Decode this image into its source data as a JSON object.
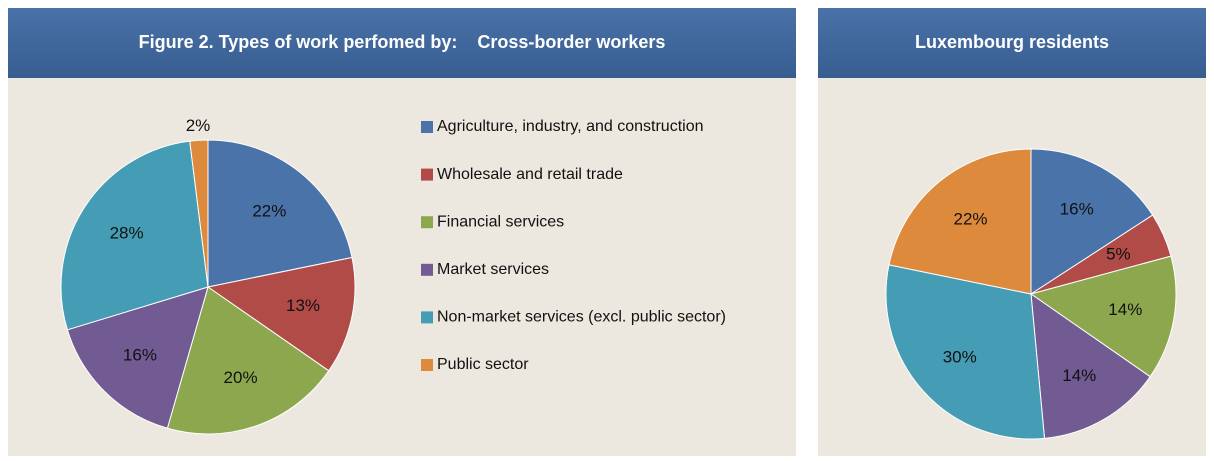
{
  "chart_data": [
    {
      "type": "pie",
      "title": "Figure 2. Types of work perfomed by:    Cross-border workers",
      "categories": [
        "Agriculture, industry, and construction",
        "Wholesale and retail trade",
        "Financial services",
        "Market services",
        "Non-market services (excl. public sector)",
        "Public sector"
      ],
      "values": [
        22,
        13,
        20,
        16,
        28,
        2
      ],
      "value_labels": [
        "22%",
        "13%",
        "20%",
        "16%",
        "28%",
        "2%"
      ],
      "colors": [
        "#4a73aa",
        "#b04b48",
        "#8da74f",
        "#725a92",
        "#449cb5",
        "#de8a3c"
      ],
      "legend": "right"
    },
    {
      "type": "pie",
      "title": "Luxembourg residents",
      "values": [
        16,
        5,
        14,
        14,
        30,
        22
      ],
      "value_labels": [
        "16%",
        "5%",
        "14%",
        "14%",
        "30%",
        "22%"
      ],
      "colors": [
        "#4a73aa",
        "#b04b48",
        "#8da74f",
        "#725a92",
        "#449cb5",
        "#de8a3c"
      ]
    }
  ]
}
